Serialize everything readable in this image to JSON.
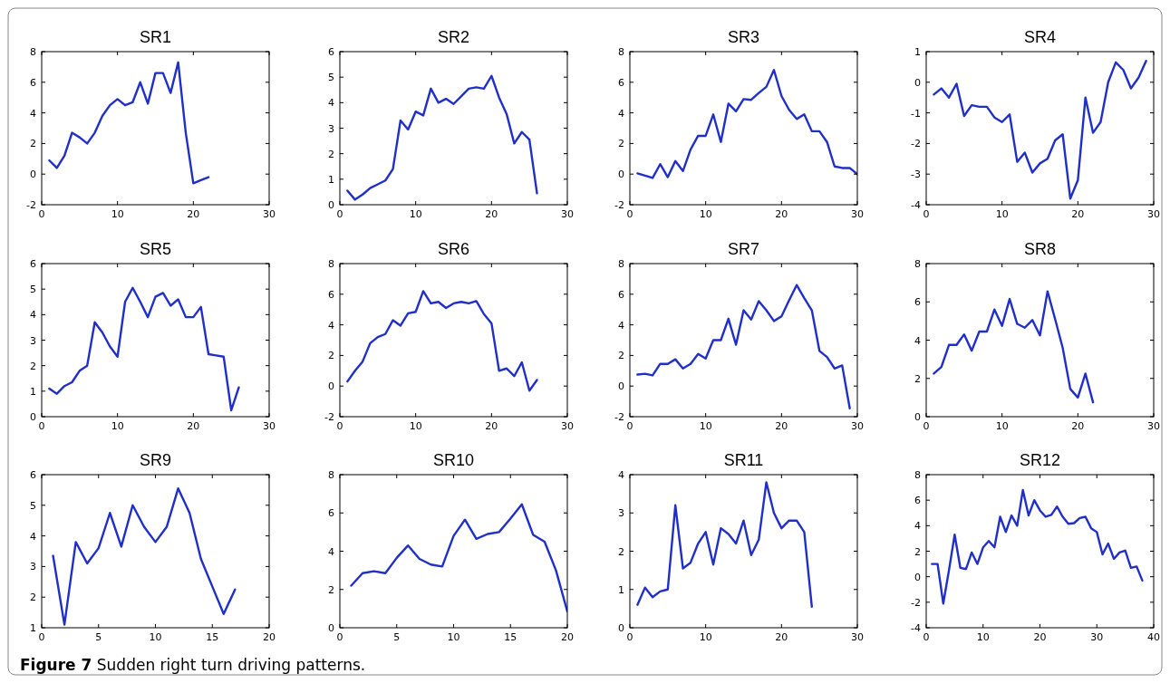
{
  "chart_data": [
    {
      "type": "line",
      "title": "SR1",
      "x": [
        1,
        2,
        3,
        4,
        5,
        6,
        7,
        8,
        9,
        10,
        11,
        12,
        13,
        14,
        15,
        16,
        17,
        18,
        19,
        20,
        21,
        22
      ],
      "series": [
        {
          "color": "#1f2fc8",
          "values": [
            0.9,
            0.4,
            1.2,
            2.7,
            2.4,
            2.0,
            2.7,
            3.8,
            4.5,
            4.9,
            4.5,
            4.7,
            6.0,
            4.6,
            6.6,
            6.6,
            5.3,
            7.3,
            2.7,
            -0.6,
            -0.4,
            -0.2
          ]
        }
      ],
      "xlim": [
        0,
        30
      ],
      "xticks": [
        0,
        10,
        20,
        30
      ],
      "ylim": [
        -2,
        8
      ],
      "yticks": [
        -2,
        0,
        2,
        4,
        6,
        8
      ]
    },
    {
      "type": "line",
      "title": "SR2",
      "x": [
        1,
        2,
        3,
        4,
        5,
        6,
        7,
        8,
        9,
        10,
        11,
        12,
        13,
        14,
        15,
        16,
        17,
        18,
        19,
        20,
        21,
        22,
        23,
        24,
        25,
        26
      ],
      "series": [
        {
          "color": "#1f2fc8",
          "values": [
            0.55,
            0.2,
            0.4,
            0.65,
            0.8,
            0.95,
            1.4,
            3.3,
            2.95,
            3.65,
            3.5,
            4.55,
            4.0,
            4.15,
            3.95,
            4.25,
            4.55,
            4.6,
            4.55,
            5.05,
            4.2,
            3.55,
            2.4,
            2.85,
            2.55,
            0.45
          ]
        }
      ],
      "xlim": [
        0,
        30
      ],
      "xticks": [
        0,
        10,
        20,
        30
      ],
      "ylim": [
        0,
        6
      ],
      "yticks": [
        0,
        1,
        2,
        3,
        4,
        5,
        6
      ]
    },
    {
      "type": "line",
      "title": "SR3",
      "x": [
        1,
        2,
        3,
        4,
        5,
        6,
        7,
        8,
        9,
        10,
        11,
        12,
        13,
        14,
        15,
        16,
        17,
        18,
        19,
        20,
        21,
        22,
        23,
        24,
        25,
        26,
        27,
        28,
        29,
        30
      ],
      "series": [
        {
          "color": "#1f2fc8",
          "values": [
            0.05,
            -0.1,
            -0.25,
            0.65,
            -0.2,
            0.85,
            0.2,
            1.6,
            2.5,
            2.5,
            3.9,
            2.1,
            4.6,
            4.1,
            4.9,
            4.85,
            5.3,
            5.7,
            6.8,
            5.1,
            4.2,
            3.6,
            3.9,
            2.8,
            2.8,
            2.1,
            0.5,
            0.4,
            0.4,
            0.0
          ]
        }
      ],
      "xlim": [
        0,
        30
      ],
      "xticks": [
        0,
        10,
        20,
        30
      ],
      "ylim": [
        -2,
        8
      ],
      "yticks": [
        -2,
        0,
        2,
        4,
        6,
        8
      ]
    },
    {
      "type": "line",
      "title": "SR4",
      "x": [
        1,
        2,
        3,
        4,
        5,
        6,
        7,
        8,
        9,
        10,
        11,
        12,
        13,
        14,
        15,
        16,
        17,
        18,
        19,
        20,
        21,
        22,
        23,
        24,
        25,
        26,
        27,
        28,
        29
      ],
      "series": [
        {
          "color": "#1f2fc8",
          "values": [
            -0.4,
            -0.2,
            -0.5,
            -0.05,
            -1.1,
            -0.75,
            -0.8,
            -0.8,
            -1.15,
            -1.3,
            -1.05,
            -2.6,
            -2.3,
            -2.95,
            -2.65,
            -2.5,
            -1.9,
            -1.7,
            -3.8,
            -3.2,
            -0.5,
            -1.65,
            -1.3,
            0.0,
            0.65,
            0.4,
            -0.2,
            0.15,
            0.7
          ]
        }
      ],
      "xlim": [
        0,
        30
      ],
      "xticks": [
        0,
        10,
        20,
        30
      ],
      "ylim": [
        -4,
        1
      ],
      "yticks": [
        -4,
        -3,
        -2,
        -1,
        0,
        1
      ]
    },
    {
      "type": "line",
      "title": "SR5",
      "x": [
        1,
        2,
        3,
        4,
        5,
        6,
        7,
        8,
        9,
        10,
        11,
        12,
        13,
        14,
        15,
        16,
        17,
        18,
        19,
        20,
        21,
        22,
        23,
        24,
        25,
        26
      ],
      "series": [
        {
          "color": "#1f2fc8",
          "values": [
            1.1,
            0.9,
            1.2,
            1.35,
            1.8,
            2.0,
            3.7,
            3.3,
            2.75,
            2.35,
            4.5,
            5.05,
            4.5,
            3.9,
            4.7,
            4.85,
            4.35,
            4.6,
            3.9,
            3.9,
            4.3,
            2.45,
            2.4,
            2.35,
            0.25,
            1.15
          ]
        }
      ],
      "xlim": [
        0,
        30
      ],
      "xticks": [
        0,
        10,
        20,
        30
      ],
      "ylim": [
        0,
        6
      ],
      "yticks": [
        0,
        1,
        2,
        3,
        4,
        5,
        6
      ]
    },
    {
      "type": "line",
      "title": "SR6",
      "x": [
        1,
        2,
        3,
        4,
        5,
        6,
        7,
        8,
        9,
        10,
        11,
        12,
        13,
        14,
        15,
        16,
        17,
        18,
        19,
        20,
        21,
        22,
        23,
        24,
        25,
        26
      ],
      "series": [
        {
          "color": "#1f2fc8",
          "values": [
            0.3,
            1.0,
            1.6,
            2.8,
            3.2,
            3.4,
            4.3,
            3.95,
            4.75,
            4.85,
            6.2,
            5.4,
            5.5,
            5.1,
            5.4,
            5.5,
            5.4,
            5.55,
            4.7,
            4.1,
            1.0,
            1.15,
            0.65,
            1.55,
            -0.3,
            0.4
          ]
        }
      ],
      "xlim": [
        0,
        30
      ],
      "xticks": [
        0,
        10,
        20,
        30
      ],
      "ylim": [
        -2,
        8
      ],
      "yticks": [
        -2,
        0,
        2,
        4,
        6,
        8
      ]
    },
    {
      "type": "line",
      "title": "SR7",
      "x": [
        1,
        2,
        3,
        4,
        5,
        6,
        7,
        8,
        9,
        10,
        11,
        12,
        13,
        14,
        15,
        16,
        17,
        18,
        19,
        20,
        21,
        22,
        23,
        24,
        25,
        26,
        27,
        28,
        29
      ],
      "series": [
        {
          "color": "#1f2fc8",
          "values": [
            0.75,
            0.8,
            0.7,
            1.45,
            1.45,
            1.75,
            1.15,
            1.45,
            2.1,
            1.8,
            3.0,
            3.0,
            4.4,
            2.7,
            4.95,
            4.35,
            5.55,
            4.95,
            4.25,
            4.55,
            5.6,
            6.6,
            5.75,
            4.95,
            2.3,
            1.9,
            1.15,
            1.35,
            -1.45
          ]
        }
      ],
      "xlim": [
        0,
        30
      ],
      "xticks": [
        0,
        10,
        20,
        30
      ],
      "ylim": [
        -2,
        8
      ],
      "yticks": [
        -2,
        0,
        2,
        4,
        6,
        8
      ]
    },
    {
      "type": "line",
      "title": "SR8",
      "x": [
        1,
        2,
        3,
        4,
        5,
        6,
        7,
        8,
        9,
        10,
        11,
        12,
        13,
        14,
        15,
        16,
        17,
        18,
        19,
        20,
        21,
        22
      ],
      "series": [
        {
          "color": "#1f2fc8",
          "values": [
            2.25,
            2.6,
            3.75,
            3.75,
            4.3,
            3.45,
            4.45,
            4.45,
            5.6,
            4.75,
            6.15,
            4.85,
            4.65,
            5.05,
            4.25,
            6.55,
            5.1,
            3.6,
            1.45,
            1.0,
            2.25,
            0.75
          ]
        }
      ],
      "xlim": [
        0,
        30
      ],
      "xticks": [
        0,
        10,
        20,
        30
      ],
      "ylim": [
        0,
        8
      ],
      "yticks": [
        0,
        2,
        4,
        6,
        8
      ]
    },
    {
      "type": "line",
      "title": "SR9",
      "x": [
        1,
        2,
        3,
        4,
        5,
        6,
        7,
        8,
        9,
        10,
        11,
        12,
        13,
        14,
        15,
        16,
        17
      ],
      "series": [
        {
          "color": "#1f2fc8",
          "values": [
            3.35,
            1.1,
            3.8,
            3.1,
            3.6,
            4.75,
            3.65,
            5.0,
            4.3,
            3.8,
            4.3,
            5.55,
            4.75,
            3.25,
            2.35,
            1.45,
            2.25
          ]
        }
      ],
      "xlim": [
        0,
        20
      ],
      "xticks": [
        0,
        5,
        10,
        15,
        20
      ],
      "ylim": [
        1,
        6
      ],
      "yticks": [
        1,
        2,
        3,
        4,
        5,
        6
      ]
    },
    {
      "type": "line",
      "title": "SR10",
      "x": [
        1,
        2,
        3,
        4,
        5,
        6,
        7,
        8,
        9,
        10,
        11,
        12,
        13,
        14,
        15,
        16,
        17,
        18,
        19,
        20
      ],
      "series": [
        {
          "color": "#1f2fc8",
          "values": [
            2.2,
            2.85,
            2.95,
            2.85,
            3.65,
            4.3,
            3.6,
            3.3,
            3.2,
            4.8,
            5.65,
            4.65,
            4.9,
            5.0,
            5.7,
            6.45,
            4.85,
            4.5,
            3.0,
            0.85
          ]
        }
      ],
      "xlim": [
        0,
        20
      ],
      "xticks": [
        0,
        5,
        10,
        15,
        20
      ],
      "ylim": [
        0,
        8
      ],
      "yticks": [
        0,
        2,
        4,
        6,
        8
      ]
    },
    {
      "type": "line",
      "title": "SR11",
      "x": [
        1,
        2,
        3,
        4,
        5,
        6,
        7,
        8,
        9,
        10,
        11,
        12,
        13,
        14,
        15,
        16,
        17,
        18,
        19,
        20,
        21,
        22,
        23,
        24
      ],
      "series": [
        {
          "color": "#1f2fc8",
          "values": [
            0.6,
            1.05,
            0.8,
            0.95,
            1.0,
            3.2,
            1.55,
            1.7,
            2.2,
            2.5,
            1.65,
            2.6,
            2.45,
            2.2,
            2.8,
            1.9,
            2.3,
            3.8,
            3.0,
            2.6,
            2.8,
            2.8,
            2.5,
            0.55
          ]
        }
      ],
      "xlim": [
        0,
        30
      ],
      "xticks": [
        0,
        10,
        20,
        30
      ],
      "ylim": [
        0,
        4
      ],
      "yticks": [
        0,
        1,
        2,
        3,
        4
      ]
    },
    {
      "type": "line",
      "title": "SR12",
      "x": [
        1,
        2,
        3,
        4,
        5,
        6,
        7,
        8,
        9,
        10,
        11,
        12,
        13,
        14,
        15,
        16,
        17,
        18,
        19,
        20,
        21,
        22,
        23,
        24,
        25,
        26,
        27,
        28,
        29,
        30,
        31,
        32,
        33,
        34,
        35,
        36,
        37,
        38
      ],
      "series": [
        {
          "color": "#1f2fc8",
          "values": [
            1.0,
            1.0,
            -2.1,
            0.5,
            3.3,
            0.7,
            0.6,
            1.9,
            1.0,
            2.3,
            2.8,
            2.3,
            4.7,
            3.5,
            4.8,
            4.0,
            6.8,
            4.8,
            6.0,
            5.2,
            4.7,
            4.85,
            5.5,
            4.7,
            4.15,
            4.2,
            4.6,
            4.7,
            3.8,
            3.5,
            1.75,
            2.6,
            1.4,
            1.9,
            2.05,
            0.7,
            0.8,
            -0.3
          ]
        }
      ],
      "xlim": [
        0,
        40
      ],
      "xticks": [
        0,
        10,
        20,
        30,
        40
      ],
      "ylim": [
        -4,
        8
      ],
      "yticks": [
        -4,
        -2,
        0,
        2,
        4,
        6,
        8
      ],
      "annotations": [
        "Figure 7 Sudden right turn driving patterns."
      ]
    }
  ]
}
